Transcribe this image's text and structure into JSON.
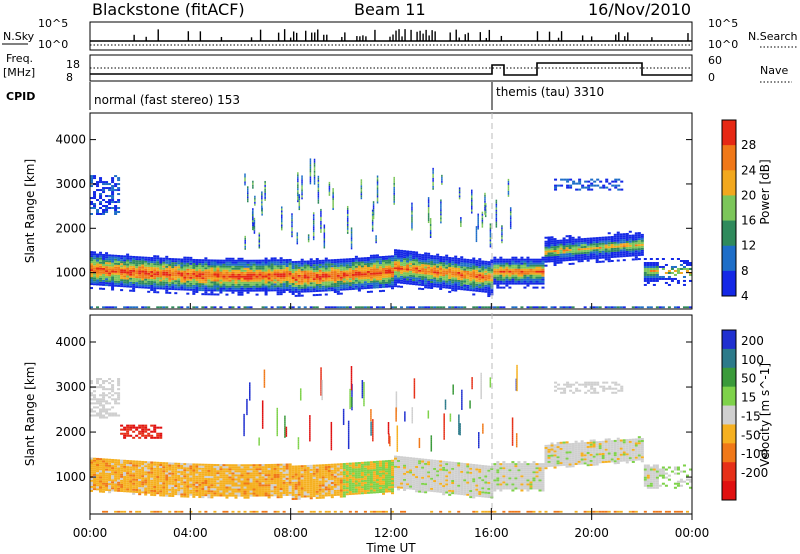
{
  "header": {
    "site": "Blackstone (fitACF)",
    "beam": "Beam 11",
    "date": "16/Nov/2010"
  },
  "strip_labels": {
    "nsky": "N.Sky",
    "nsearch": "N.Search",
    "freq_top": "Freq.",
    "freq_unit": "[MHz]",
    "nave": "Nave",
    "cpid": "CPID"
  },
  "strip_ticks": {
    "noise_left": [
      "10^5",
      "10^0"
    ],
    "noise_right": [
      "10^5",
      "10^0"
    ],
    "freq_left": [
      "18",
      "8"
    ],
    "nave_right": [
      "60",
      "0"
    ]
  },
  "cpid_labels": [
    "normal (fast stereo) 153",
    "themis (tau) 3310"
  ],
  "time_axis": {
    "label": "Time UT",
    "ticks": [
      "00:00",
      "04:00",
      "08:00",
      "12:00",
      "16:00",
      "20:00",
      "00:00"
    ]
  },
  "range_axis": {
    "label": "Slant Range [km]",
    "ticks": [
      "1000",
      "2000",
      "3000",
      "4000"
    ]
  },
  "power_scale": {
    "label": "Power [dB]",
    "ticks": [
      "4",
      "8",
      "12",
      "16",
      "20",
      "24",
      "28"
    ],
    "colors": [
      "#1428e6",
      "#1e6ec8",
      "#2f8a5c",
      "#7cc65a",
      "#f2a81e",
      "#f07818",
      "#e62814"
    ]
  },
  "velocity_scale": {
    "label": "Velocity [m s^-1]",
    "ticks": [
      "200",
      "100",
      "50",
      "15",
      "-15",
      "-50",
      "-100",
      "-200"
    ],
    "colors": [
      "#2030d0",
      "#2c7a8a",
      "#3a9a3a",
      "#7ed24a",
      "#cfcfcf",
      "#f5b020",
      "#f07818",
      "#e63018",
      "#e01010"
    ]
  },
  "chart_data": {
    "type": "heatmap",
    "x_range_hours": [
      0,
      24
    ],
    "y_range_km": [
      180,
      4600
    ],
    "mode_change_hour": 16,
    "panels": [
      "Power [dB]",
      "Velocity [m s^-1]"
    ]
  }
}
